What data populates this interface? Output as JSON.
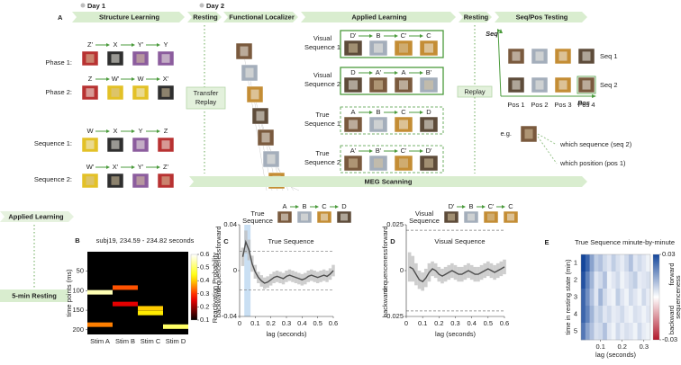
{
  "figure_a": {
    "label": "A",
    "day1": "Day 1",
    "day2": "Day 2",
    "stages": [
      "Structure Learning",
      "Resting",
      "Functional Localizer",
      "Applied Learning",
      "Resting",
      "Seq/Pos Testing"
    ],
    "structure": {
      "phases": [
        {
          "label": "Phase 1:",
          "items": [
            "Z'",
            "X",
            "Y'",
            "Y"
          ]
        },
        {
          "label": "Phase 2:",
          "items": [
            "Z",
            "W'",
            "W",
            "X'"
          ]
        }
      ],
      "sequences": [
        {
          "label": "Sequence 1:",
          "items": [
            "W",
            "X",
            "Y",
            "Z"
          ]
        },
        {
          "label": "Sequence 2:",
          "items": [
            "W'",
            "X'",
            "Y'",
            "Z'"
          ]
        }
      ]
    },
    "transfer_replay": [
      "Transfer",
      "Replay"
    ],
    "applied": [
      {
        "label": [
          "Visual",
          "Sequence 1"
        ],
        "items": [
          "D'",
          "B",
          "C'",
          "C"
        ]
      },
      {
        "label": [
          "Visual",
          "Sequence 2"
        ],
        "items": [
          "D",
          "A'",
          "A",
          "B'"
        ]
      },
      {
        "label": [
          "True",
          "Sequence 1"
        ],
        "items": [
          "A",
          "B",
          "C",
          "D"
        ]
      },
      {
        "label": [
          "True",
          "Sequence 2"
        ],
        "items": [
          "A'",
          "B'",
          "C'",
          "D'"
        ]
      }
    ],
    "replay": "Replay",
    "testing": {
      "y_axis": "Seq",
      "x_axis": "Pos",
      "rows": [
        "Seq 1",
        "Seq 2"
      ],
      "cols": [
        "Pos 1",
        "Pos 2",
        "Pos 3",
        "Pos 4"
      ],
      "eg": "e.g.",
      "q1": "which sequence (seq 2)",
      "q2": "which position (pos 1)"
    },
    "meg": "MEG Scanning"
  },
  "timeline": {
    "applied": "Applied Learning",
    "resting": "5-min Resting"
  },
  "chart_data": [
    {
      "type": "raster",
      "panel": "B",
      "title": "subj19, 234.59 - 234.82 seconds",
      "series": [
        {
          "name": "Stim A",
          "times": [
            104,
            187
          ],
          "values": [
            0.55,
            0.35
          ]
        },
        {
          "name": "Stim B",
          "times": [
            92,
            134
          ],
          "values": [
            0.32,
            0.25
          ]
        },
        {
          "name": "Stim C",
          "times": [
            145,
            157
          ],
          "values": [
            0.4,
            0.42
          ]
        },
        {
          "name": "Stim D",
          "times": [
            192
          ],
          "values": [
            0.5
          ]
        }
      ],
      "ylim": [
        0,
        212
      ],
      "y_inverted": true,
      "yticks": [
        50,
        100,
        150,
        200
      ],
      "ylabel": "time points (ms)",
      "clim": [
        0.1,
        0.6
      ],
      "cticks": [
        0.1,
        0.2,
        0.3,
        0.4,
        0.5,
        0.6
      ],
      "colorbar_label": "Reactivation Probability"
    },
    {
      "type": "line",
      "panel": "C",
      "title": "True Sequence",
      "header": [
        "True",
        "Sequence"
      ],
      "header_items": [
        "A",
        "B",
        "C",
        "D"
      ],
      "x": [
        0.02,
        0.04,
        0.06,
        0.08,
        0.1,
        0.12,
        0.14,
        0.16,
        0.18,
        0.2,
        0.22,
        0.24,
        0.26,
        0.28,
        0.3,
        0.32,
        0.34,
        0.36,
        0.38,
        0.4,
        0.42,
        0.44,
        0.46,
        0.48,
        0.5,
        0.52,
        0.54,
        0.56,
        0.58,
        0.6
      ],
      "values": [
        0.012,
        0.025,
        0.018,
        0.006,
        -0.001,
        -0.006,
        -0.009,
        -0.011,
        -0.01,
        -0.008,
        -0.006,
        -0.005,
        -0.006,
        -0.007,
        -0.005,
        -0.004,
        -0.005,
        -0.006,
        -0.007,
        -0.008,
        -0.007,
        -0.005,
        -0.004,
        -0.005,
        -0.006,
        -0.005,
        -0.004,
        -0.005,
        -0.003,
        0.0
      ],
      "error": [
        0.008,
        0.01,
        0.009,
        0.007,
        0.006,
        0.005,
        0.005,
        0.005,
        0.005,
        0.005,
        0.005,
        0.005,
        0.005,
        0.005,
        0.005,
        0.005,
        0.005,
        0.005,
        0.005,
        0.005,
        0.005,
        0.005,
        0.005,
        0.005,
        0.005,
        0.005,
        0.005,
        0.005,
        0.005,
        0.005
      ],
      "thresholds": [
        -0.017,
        0.017
      ],
      "highlight": [
        0.03,
        0.07
      ],
      "xlim": [
        0,
        0.6
      ],
      "ylim": [
        -0.04,
        0.04
      ],
      "xticks": [
        0,
        0.1,
        0.2,
        0.3,
        0.4,
        0.5,
        0.6
      ],
      "yticks": [
        -0.04,
        0,
        0.04
      ],
      "xlabel": "lag (seconds)",
      "ylabel": "sequenceness",
      "ylabel_top": "forward",
      "ylabel_bottom": "backward",
      "color": "#4d4d4d",
      "band_color": "#bdbdbd",
      "highlight_color": "#c9dff3"
    },
    {
      "type": "line",
      "panel": "D",
      "title": "Visual Sequence",
      "header": [
        "Visual",
        "Sequence"
      ],
      "header_items": [
        "D'",
        "B",
        "C'",
        "C"
      ],
      "x": [
        0.02,
        0.04,
        0.06,
        0.08,
        0.1,
        0.12,
        0.14,
        0.16,
        0.18,
        0.2,
        0.22,
        0.24,
        0.26,
        0.28,
        0.3,
        0.32,
        0.34,
        0.36,
        0.38,
        0.4,
        0.42,
        0.44,
        0.46,
        0.48,
        0.5,
        0.52,
        0.54,
        0.56,
        0.58,
        0.6
      ],
      "values": [
        0.002,
        0.001,
        -0.002,
        -0.005,
        -0.006,
        -0.004,
        -0.001,
        0.001,
        0.0,
        -0.002,
        -0.003,
        -0.002,
        -0.001,
        0.0,
        -0.001,
        -0.002,
        -0.002,
        -0.001,
        0.0,
        -0.001,
        -0.002,
        -0.002,
        -0.001,
        0.0,
        0.001,
        0.0,
        -0.001,
        0.0,
        0.001,
        0.002
      ],
      "error": [
        0.008,
        0.007,
        0.006,
        0.005,
        0.005,
        0.005,
        0.005,
        0.004,
        0.004,
        0.004,
        0.004,
        0.004,
        0.004,
        0.004,
        0.004,
        0.004,
        0.004,
        0.004,
        0.004,
        0.004,
        0.004,
        0.004,
        0.004,
        0.004,
        0.004,
        0.004,
        0.004,
        0.004,
        0.004,
        0.004
      ],
      "thresholds": [
        -0.022,
        0.022
      ],
      "xlim": [
        0,
        0.6
      ],
      "ylim": [
        -0.025,
        0.025
      ],
      "xticks": [
        0,
        0.1,
        0.2,
        0.3,
        0.4,
        0.5,
        0.6
      ],
      "yticks": [
        -0.025,
        0,
        0.025
      ],
      "xlabel": "lag (seconds)",
      "ylabel": "sequenceness",
      "ylabel_top": "forward",
      "ylabel_bottom": "backward",
      "color": "#4d4d4d",
      "band_color": "#bdbdbd"
    },
    {
      "type": "heatmap",
      "panel": "E",
      "title": "True Sequence minute-by-minute",
      "x": [
        0.02,
        0.04,
        0.06,
        0.08,
        0.1,
        0.12,
        0.14,
        0.16,
        0.18,
        0.2,
        0.22,
        0.24,
        0.26,
        0.28,
        0.3,
        0.32
      ],
      "categories": [
        1,
        2,
        3,
        4,
        5
      ],
      "values": [
        [
          0.03,
          0.025,
          0.015,
          0.008,
          0.01,
          0.006,
          0.004,
          0.008,
          0.005,
          0.003,
          0.006,
          0.01,
          0.004,
          0.006,
          0.004,
          0.002
        ],
        [
          0.028,
          0.02,
          0.012,
          0.004,
          0.006,
          0.01,
          0.002,
          0.004,
          0.006,
          0.002,
          0.004,
          0.006,
          0.008,
          0.003,
          0.004,
          0.005
        ],
        [
          0.025,
          0.018,
          0.01,
          0.004,
          0.012,
          0.006,
          0.003,
          0.002,
          0.008,
          0.004,
          0.002,
          0.006,
          0.004,
          0.002,
          0.006,
          0.003
        ],
        [
          0.025,
          0.02,
          0.012,
          0.006,
          0.008,
          0.004,
          0.006,
          0.003,
          0.004,
          0.006,
          0.003,
          0.002,
          0.005,
          0.004,
          0.002,
          0.004
        ],
        [
          0.022,
          0.015,
          0.01,
          0.005,
          0.006,
          0.01,
          0.004,
          0.002,
          0.006,
          0.003,
          0.005,
          0.004,
          0.002,
          0.006,
          0.003,
          0.002
        ]
      ],
      "xlim": [
        0.01,
        0.33
      ],
      "xticks": [
        0.1,
        0.2,
        0.3
      ],
      "xlabel": "lag (seconds)",
      "ylabel": "time in resting state (min)",
      "clim": [
        -0.03,
        0.03
      ],
      "cticks": [
        -0.03,
        0.03
      ],
      "colorbar_top": "forward",
      "colorbar_bottom": "backward",
      "colorbar_label": "sequenceness"
    }
  ]
}
